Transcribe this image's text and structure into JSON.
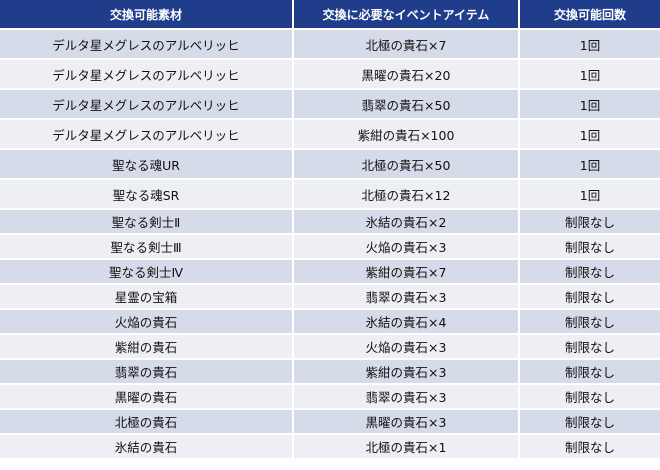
{
  "table": {
    "headers": [
      "交換可能素材",
      "交換に必要なイベントアイテム",
      "交換可能回数"
    ],
    "rows": [
      {
        "material": "デルタ星メグレスのアルベリッヒ",
        "item": "北極の貴石×7",
        "limit": "1回"
      },
      {
        "material": "デルタ星メグレスのアルベリッヒ",
        "item": "黒曜の貴石×20",
        "limit": "1回"
      },
      {
        "material": "デルタ星メグレスのアルベリッヒ",
        "item": "翡翠の貴石×50",
        "limit": "1回"
      },
      {
        "material": "デルタ星メグレスのアルベリッヒ",
        "item": "紫紺の貴石×100",
        "limit": "1回"
      },
      {
        "material": "聖なる魂UR",
        "item": "北極の貴石×50",
        "limit": "1回"
      },
      {
        "material": "聖なる魂SR",
        "item": "北極の貴石×12",
        "limit": "1回"
      },
      {
        "material": "聖なる剣士Ⅱ",
        "item": "氷結の貴石×2",
        "limit": "制限なし"
      },
      {
        "material": "聖なる剣士Ⅲ",
        "item": "火焔の貴石×3",
        "limit": "制限なし"
      },
      {
        "material": "聖なる剣士Ⅳ",
        "item": "紫紺の貴石×7",
        "limit": "制限なし"
      },
      {
        "material": "星霊の宝箱",
        "item": "翡翠の貴石×3",
        "limit": "制限なし"
      },
      {
        "material": "火焔の貴石",
        "item": "氷結の貴石×4",
        "limit": "制限なし"
      },
      {
        "material": "紫紺の貴石",
        "item": "火焔の貴石×3",
        "limit": "制限なし"
      },
      {
        "material": "翡翠の貴石",
        "item": "紫紺の貴石×3",
        "limit": "制限なし"
      },
      {
        "material": "黒曜の貴石",
        "item": "翡翠の貴石×3",
        "limit": "制限なし"
      },
      {
        "material": "北極の貴石",
        "item": "黒曜の貴石×3",
        "limit": "制限なし"
      },
      {
        "material": "氷結の貴石",
        "item": "北極の貴石×1",
        "limit": "制限なし"
      }
    ]
  },
  "colors": {
    "header_bg": "#1f3d8a",
    "header_text": "#ffffff",
    "row_odd_bg": "#d6dbe9",
    "row_even_bg": "#edeff5"
  }
}
